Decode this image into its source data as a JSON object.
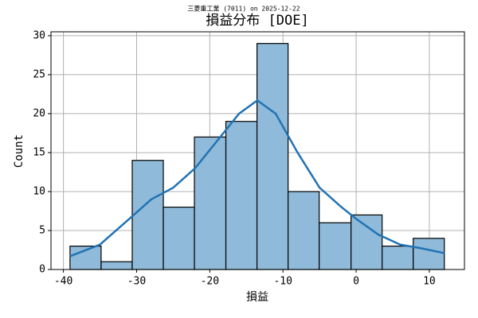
{
  "chart_data": {
    "type": "histogram",
    "title": "損益分布 [DOE]",
    "subtitle": "三菱重工業 (7011) on 2025-12-22",
    "x_label": "損益",
    "y_label": "Count",
    "bins": [
      -39.1,
      -34.85,
      -30.6,
      -26.35,
      -22.1,
      -17.8,
      -13.55,
      -9.3,
      -5.05,
      -0.7,
      3.55,
      7.8,
      12.05
    ],
    "counts": [
      3,
      1,
      14,
      8,
      17,
      19,
      29,
      10,
      6,
      7,
      3,
      4
    ],
    "color": "#8fbad9",
    "kde": {
      "color": "#2273b4",
      "x": [
        -39.1,
        -35,
        -31,
        -28,
        -25,
        -22,
        -19,
        -16,
        -13.5,
        -11,
        -8,
        -5,
        -2,
        0,
        3,
        6,
        9,
        12.05
      ],
      "values": [
        1.7,
        3.2,
        6.5,
        9,
        10.5,
        13,
        16.5,
        20,
        21.7,
        20,
        15,
        10.5,
        8,
        6.5,
        4.5,
        3.2,
        2.7,
        2.1
      ]
    },
    "xlim": [
      -41.7,
      14.8
    ],
    "ylim": [
      0,
      30.5
    ],
    "xticks": [
      -40,
      -30,
      -20,
      -10,
      0,
      10
    ],
    "yticks": [
      0,
      5,
      10,
      15,
      20,
      25,
      30
    ],
    "grid": true
  }
}
